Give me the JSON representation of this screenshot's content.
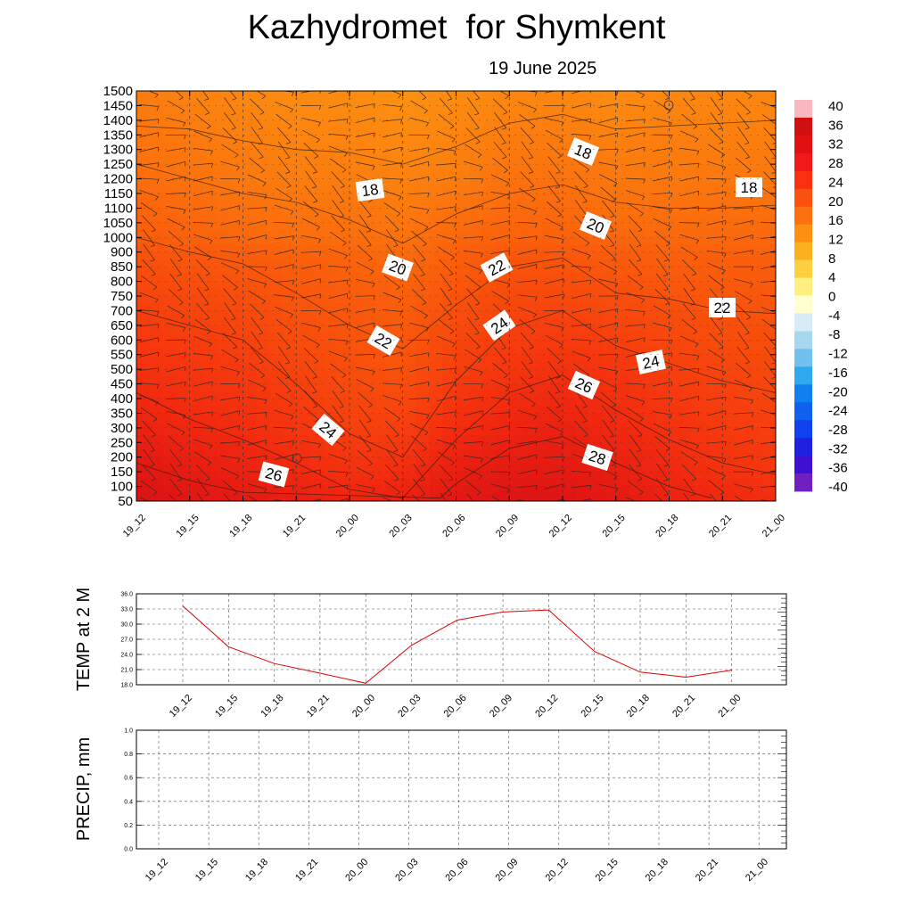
{
  "header": {
    "title": "Kazhydromet  for Shymkent",
    "subtitle": "19 June 2025"
  },
  "chart_data": [
    {
      "type": "heatmap",
      "description_kind": "vertical temperature cross-section with wind barbs",
      "x_categories": [
        "19_12",
        "19_15",
        "19_18",
        "19_21",
        "20_00",
        "20_03",
        "20_06",
        "20_09",
        "20_12",
        "20_15",
        "20_18",
        "20_21",
        "21_00"
      ],
      "y_ticks": [
        50,
        100,
        150,
        200,
        250,
        300,
        350,
        400,
        450,
        500,
        550,
        600,
        650,
        700,
        750,
        800,
        850,
        900,
        1000,
        1050,
        1100,
        1150,
        1200,
        1250,
        1300,
        1350,
        1400,
        1450,
        1500
      ],
      "colorbar": {
        "ticks": [
          40,
          36,
          32,
          28,
          24,
          20,
          16,
          12,
          8,
          4,
          0,
          -4,
          -8,
          -12,
          -16,
          -20,
          -24,
          -28,
          -32,
          -36,
          -40
        ],
        "colors": [
          "#f8b8c0",
          "#d01010",
          "#e01010",
          "#f01818",
          "#f83010",
          "#fa5010",
          "#fb7010",
          "#fc9010",
          "#fcb020",
          "#fed040",
          "#fef080",
          "#ffffd0",
          "#d8ecf8",
          "#a8d8f0",
          "#70c0f0",
          "#30a8f0",
          "#1080f0",
          "#1060f0",
          "#1040f0",
          "#2020e0",
          "#4010d0",
          "#7020c0"
        ]
      },
      "grid": {
        "rows": [
          {
            "level": 50,
            "values": [
              30.5,
              29.5,
              28.5,
              27.5,
              26.5,
              27.0,
              29.0,
              30.0,
              30.0,
              28.5,
              27.0,
              26.0,
              25.5
            ]
          },
          {
            "level": 150,
            "values": [
              29.0,
              28.0,
              27.0,
              26.0,
              25.0,
              25.5,
              27.5,
              28.5,
              28.5,
              27.5,
              26.0,
              25.0,
              24.5
            ]
          },
          {
            "level": 300,
            "values": [
              27.0,
              26.0,
              25.5,
              24.5,
              23.5,
              23.5,
              25.5,
              26.5,
              27.0,
              26.0,
              25.0,
              24.0,
              23.5
            ]
          },
          {
            "level": 500,
            "values": [
              25.0,
              24.5,
              24.0,
              23.0,
              22.0,
              21.5,
              23.5,
              24.5,
              25.0,
              24.5,
              23.5,
              23.0,
              22.5
            ]
          },
          {
            "level": 700,
            "values": [
              23.5,
              23.0,
              22.5,
              21.5,
              21.0,
              20.5,
              22.0,
              23.0,
              23.0,
              22.5,
              22.0,
              21.5,
              21.5
            ]
          },
          {
            "level": 850,
            "values": [
              22.0,
              21.5,
              21.0,
              20.5,
              20.0,
              19.5,
              20.5,
              21.5,
              21.5,
              21.0,
              20.5,
              20.5,
              20.5
            ]
          },
          {
            "level": 1000,
            "values": [
              20.5,
              20.0,
              19.5,
              19.0,
              19.0,
              18.5,
              19.5,
              20.0,
              20.0,
              19.5,
              19.5,
              19.5,
              19.5
            ]
          },
          {
            "level": 1200,
            "values": [
              19.0,
              18.5,
              18.0,
              17.5,
              17.5,
              17.0,
              17.5,
              18.5,
              18.5,
              18.0,
              18.0,
              18.0,
              18.0
            ]
          },
          {
            "level": 1500,
            "values": [
              17.5,
              17.0,
              16.5,
              16.0,
              16.0,
              15.5,
              16.0,
              16.5,
              16.5,
              16.0,
              16.5,
              16.5,
              16.5
            ]
          }
        ]
      },
      "contour_labels": [
        "18",
        "18",
        "18",
        "20",
        "20",
        "22",
        "22",
        "22",
        "24",
        "24",
        "24",
        "26",
        "26",
        "28"
      ]
    },
    {
      "type": "line",
      "ylabel": "TEMP at 2 M",
      "categories": [
        "19_12",
        "19_15",
        "19_18",
        "19_21",
        "20_00",
        "20_03",
        "20_06",
        "20_09",
        "20_12",
        "20_15",
        "20_18",
        "20_21",
        "21_00"
      ],
      "values": [
        33.6,
        25.5,
        22.2,
        20.3,
        18.3,
        25.8,
        30.8,
        32.4,
        32.8,
        24.6,
        20.5,
        19.5,
        20.9
      ],
      "ylim": [
        18.0,
        36.0
      ],
      "y_ticks": [
        "36.0",
        "33.0",
        "30.0",
        "27.0",
        "24.0",
        "21.0",
        "18.0"
      ],
      "line_color": "#e00000",
      "grid": true
    },
    {
      "type": "line",
      "ylabel": "PRECIP, mm",
      "categories": [
        "19_12",
        "19_15",
        "19_18",
        "19_21",
        "20_00",
        "20_03",
        "20_06",
        "20_09",
        "20_12",
        "20_15",
        "20_18",
        "20_21",
        "21_00"
      ],
      "values": [
        0,
        0,
        0,
        0,
        0,
        0,
        0,
        0,
        0,
        0,
        0,
        0,
        0
      ],
      "ylim": [
        0.0,
        1.0
      ],
      "y_ticks": [
        "1.0",
        "0.8",
        "0.6",
        "0.4",
        "0.2",
        "0.0"
      ],
      "line_color": "#008800",
      "grid": true
    }
  ]
}
